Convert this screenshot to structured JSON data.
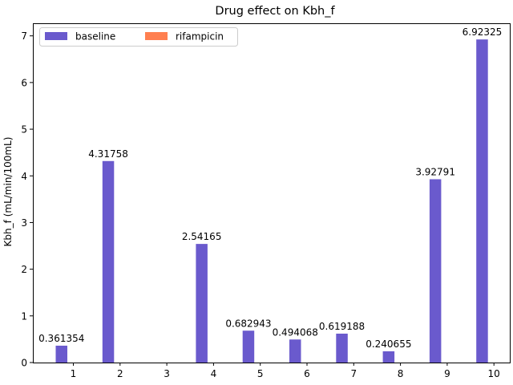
{
  "chart_data": {
    "type": "bar",
    "title": "Drug effect on Kbh_f",
    "xlabel": "",
    "ylabel": "Kbh_f (mL/min/100mL)",
    "categories": [
      "1",
      "2",
      "3",
      "4",
      "5",
      "6",
      "7",
      "8",
      "9",
      "10"
    ],
    "series": [
      {
        "name": "baseline",
        "color": "#6a5acd",
        "values": [
          0.361354,
          4.31758,
          null,
          2.54165,
          0.682943,
          0.494068,
          0.619188,
          0.240655,
          3.92791,
          6.92325
        ],
        "labels": [
          "0.361354",
          "4.31758",
          "",
          "2.54165",
          "0.682943",
          "0.494068",
          "0.619188",
          "0.240655",
          "3.92791",
          "6.92325"
        ]
      },
      {
        "name": "rifampicin",
        "color": "#ff7f50",
        "values": [
          null,
          null,
          null,
          null,
          null,
          null,
          null,
          null,
          null,
          null
        ],
        "labels": [
          "",
          "",
          "",
          "",
          "",
          "",
          "",
          "",
          "",
          ""
        ]
      }
    ],
    "ylim": [
      0,
      7.27
    ],
    "yticks": [
      "0",
      "1",
      "2",
      "3",
      "4",
      "5",
      "6",
      "7"
    ],
    "grid": false,
    "legend_position": "top-left"
  }
}
